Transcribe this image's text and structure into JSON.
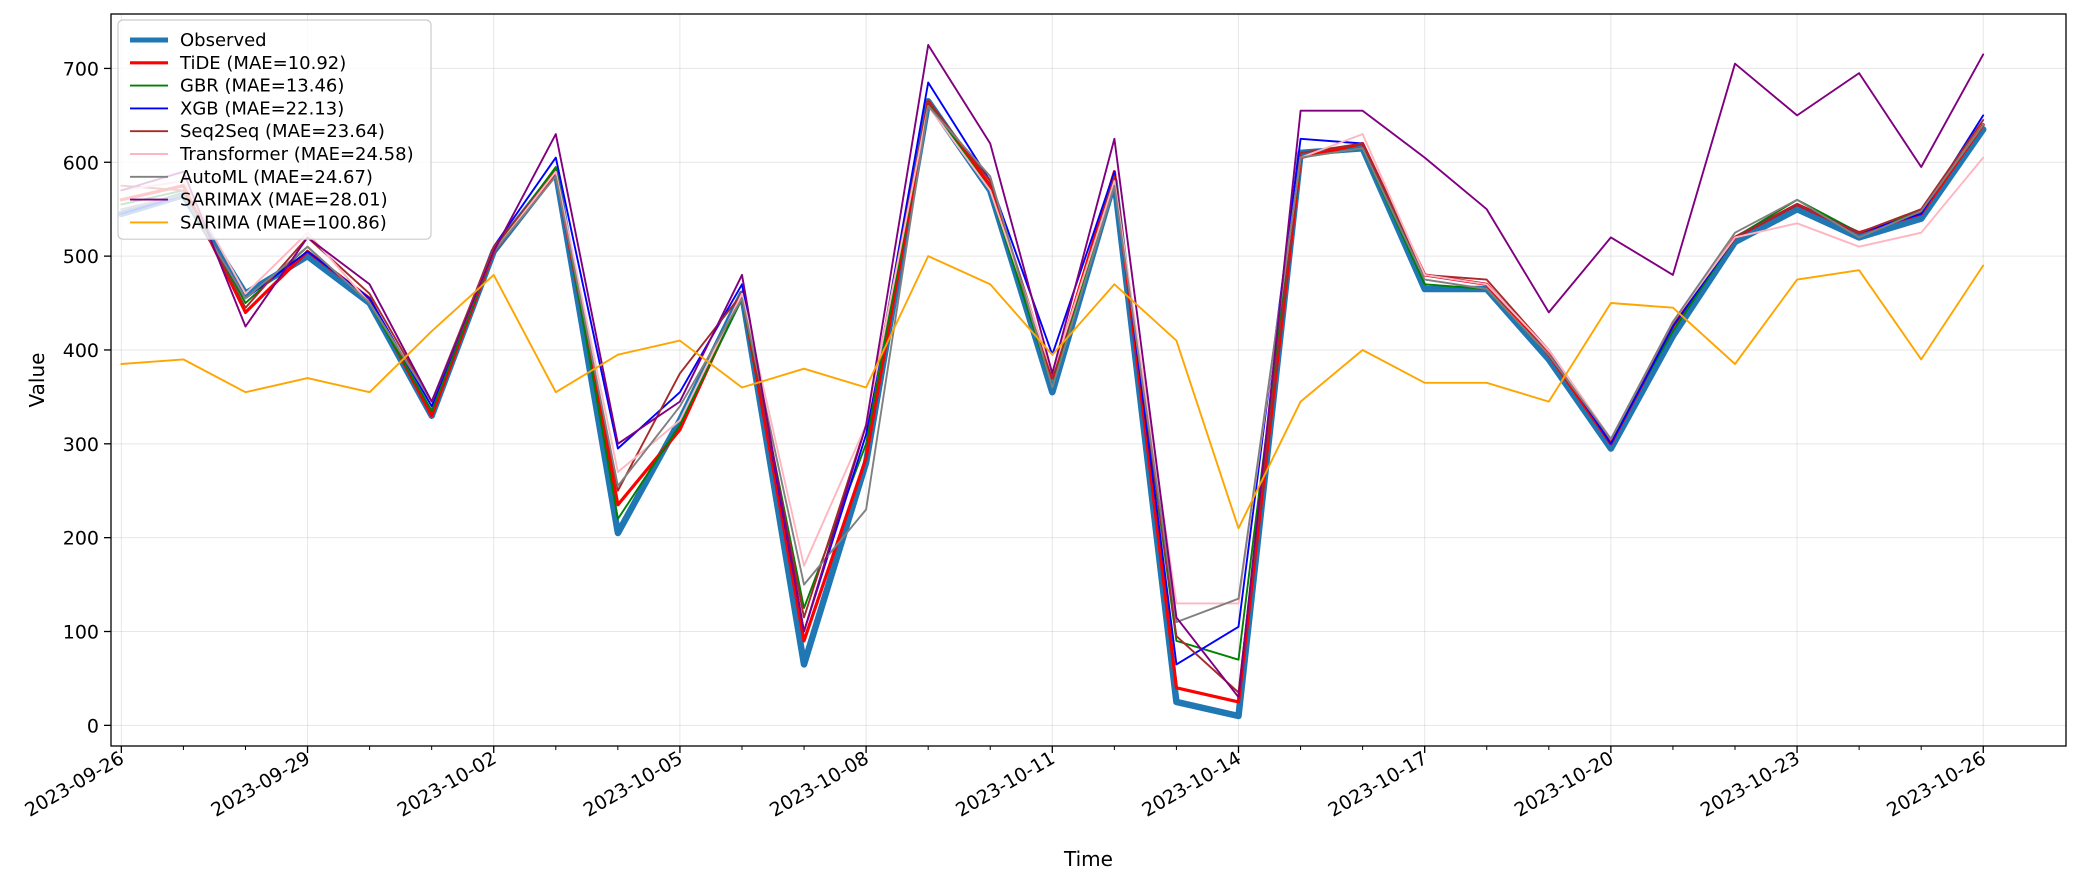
{
  "chart_data": {
    "type": "line",
    "title": "",
    "xlabel": "Time",
    "ylabel": "Value",
    "ylim": [
      -22,
      758
    ],
    "yticks": [
      0,
      100,
      200,
      300,
      400,
      500,
      600,
      700
    ],
    "xlim": [
      "2023-09-25T20:00",
      "2023-10-27T08:00"
    ],
    "xticks": [
      {
        "date": "2023-09-26",
        "label": "2023-09-26"
      },
      {
        "date": "2023-09-29",
        "label": "2023-09-29"
      },
      {
        "date": "2023-10-02",
        "label": "2023-10-02"
      },
      {
        "date": "2023-10-05",
        "label": "2023-10-05"
      },
      {
        "date": "2023-10-08",
        "label": "2023-10-08"
      },
      {
        "date": "2023-10-11",
        "label": "2023-10-11"
      },
      {
        "date": "2023-10-14",
        "label": "2023-10-14"
      },
      {
        "date": "2023-10-17",
        "label": "2023-10-17"
      },
      {
        "date": "2023-10-20",
        "label": "2023-10-20"
      },
      {
        "date": "2023-10-23",
        "label": "2023-10-23"
      },
      {
        "date": "2023-10-26",
        "label": "2023-10-26"
      }
    ],
    "minor_tick_dates": [
      "2023-09-27",
      "2023-09-28",
      "2023-09-30",
      "2023-10-01",
      "2023-10-03",
      "2023-10-04",
      "2023-10-06",
      "2023-10-07",
      "2023-10-09",
      "2023-10-10",
      "2023-10-12",
      "2023-10-13",
      "2023-10-15",
      "2023-10-16",
      "2023-10-18",
      "2023-10-19",
      "2023-10-21",
      "2023-10-22",
      "2023-10-24",
      "2023-10-25"
    ],
    "grid": true,
    "legend_position": "upper-left",
    "x": [
      "2023-09-26",
      "2023-09-27",
      "2023-09-28",
      "2023-09-29",
      "2023-09-30",
      "2023-10-01",
      "2023-10-02",
      "2023-10-03",
      "2023-10-04",
      "2023-10-05",
      "2023-10-06",
      "2023-10-07",
      "2023-10-08",
      "2023-10-09",
      "2023-10-10",
      "2023-10-11",
      "2023-10-12",
      "2023-10-13",
      "2023-10-14",
      "2023-10-15",
      "2023-10-16",
      "2023-10-17",
      "2023-10-18",
      "2023-10-19",
      "2023-10-20",
      "2023-10-21",
      "2023-10-22",
      "2023-10-23",
      "2023-10-24",
      "2023-10-25",
      "2023-10-26"
    ],
    "series": [
      {
        "name": "Observed",
        "color": "#1f77b4",
        "width": 6.5,
        "values": [
          545,
          565,
          460,
          500,
          450,
          330,
          505,
          590,
          205,
          325,
          460,
          65,
          280,
          665,
          570,
          355,
          580,
          25,
          10,
          610,
          615,
          465,
          465,
          390,
          295,
          415,
          515,
          550,
          520,
          540,
          635
        ]
      },
      {
        "name": "TiDE (MAE=10.92)",
        "color": "#ff0000",
        "width": 3.2,
        "values": [
          560,
          575,
          440,
          505,
          455,
          330,
          505,
          590,
          235,
          315,
          460,
          90,
          285,
          665,
          575,
          370,
          590,
          40,
          25,
          605,
          620,
          480,
          470,
          395,
          300,
          425,
          520,
          555,
          525,
          545,
          640
        ]
      },
      {
        "name": "GBR (MAE=13.46)",
        "color": "#008000",
        "width": 1.9,
        "values": [
          555,
          570,
          450,
          510,
          450,
          335,
          505,
          595,
          220,
          320,
          455,
          125,
          300,
          665,
          570,
          360,
          585,
          90,
          70,
          605,
          615,
          470,
          465,
          395,
          305,
          420,
          520,
          560,
          525,
          548,
          640
        ]
      },
      {
        "name": "XGB (MAE=22.13)",
        "color": "#0000ff",
        "width": 1.9,
        "values": [
          545,
          565,
          455,
          505,
          455,
          340,
          510,
          605,
          295,
          355,
          470,
          100,
          310,
          685,
          580,
          395,
          590,
          65,
          105,
          625,
          620,
          480,
          470,
          400,
          300,
          425,
          520,
          555,
          525,
          545,
          650
        ]
      },
      {
        "name": "Seq2Seq (MAE=23.64)",
        "color": "#a52a2a",
        "width": 1.9,
        "values": [
          575,
          570,
          445,
          520,
          460,
          345,
          510,
          590,
          250,
          375,
          460,
          115,
          320,
          665,
          580,
          370,
          585,
          95,
          35,
          610,
          620,
          480,
          475,
          400,
          305,
          430,
          520,
          555,
          525,
          550,
          645
        ]
      },
      {
        "name": "Transformer (MAE=24.58)",
        "color": "#ffb6c1",
        "width": 1.9,
        "values": [
          570,
          580,
          460,
          525,
          450,
          345,
          505,
          590,
          270,
          325,
          460,
          170,
          320,
          660,
          570,
          375,
          580,
          130,
          130,
          605,
          630,
          480,
          470,
          400,
          305,
          430,
          520,
          535,
          510,
          525,
          605
        ]
      },
      {
        "name": "AutoML (MAE=24.67)",
        "color": "#808080",
        "width": 1.9,
        "values": [
          550,
          565,
          455,
          510,
          450,
          345,
          505,
          585,
          255,
          340,
          455,
          150,
          230,
          660,
          585,
          360,
          575,
          110,
          135,
          605,
          615,
          475,
          465,
          395,
          305,
          430,
          525,
          560,
          520,
          548,
          640
        ]
      },
      {
        "name": "SARIMAX (MAE=28.01)",
        "color": "#800080",
        "width": 1.9,
        "values": [
          570,
          590,
          425,
          520,
          470,
          345,
          505,
          630,
          300,
          345,
          480,
          100,
          320,
          725,
          620,
          375,
          625,
          115,
          30,
          655,
          655,
          605,
          550,
          440,
          520,
          480,
          705,
          650,
          695,
          595,
          715
        ]
      },
      {
        "name": "SARIMA (MAE=100.86)",
        "color": "#ffa500",
        "width": 1.9,
        "values": [
          385,
          390,
          355,
          370,
          355,
          420,
          480,
          355,
          395,
          410,
          360,
          380,
          360,
          500,
          470,
          395,
          470,
          410,
          210,
          345,
          400,
          365,
          365,
          345,
          450,
          445,
          385,
          475,
          485,
          390,
          490
        ]
      }
    ]
  }
}
